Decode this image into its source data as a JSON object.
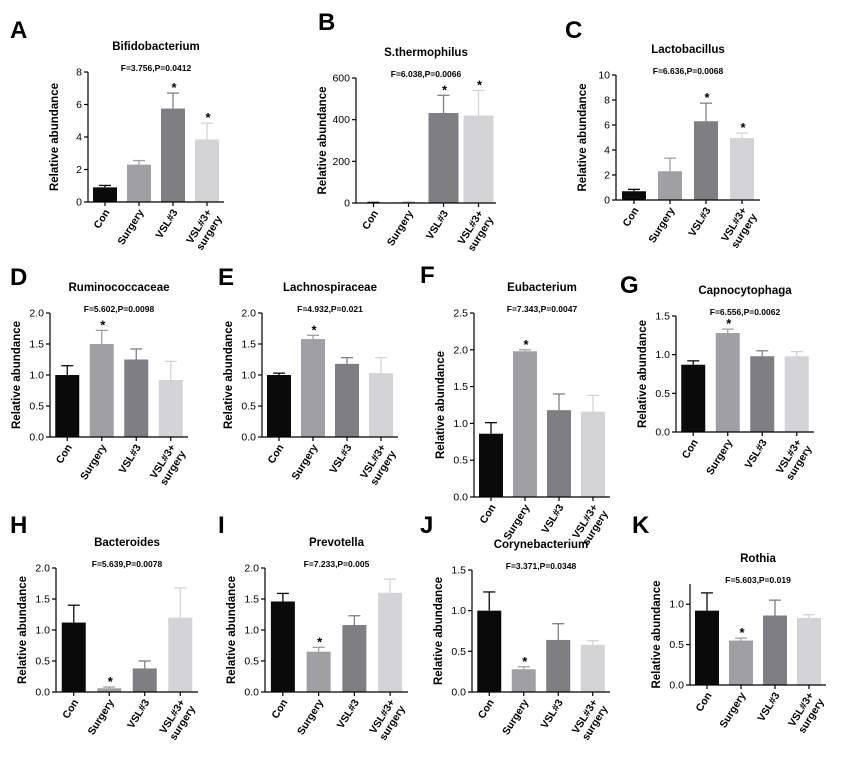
{
  "chart_data": [
    {
      "id": "A",
      "type": "bar",
      "title": "Bifidobacterium",
      "stat": "F=3.756,P=0.0412",
      "ylabel": "Relative abundance",
      "categories": [
        "Con",
        "Surgery",
        "VSL#3",
        "VSL#3+ surgery"
      ],
      "values": [
        0.9,
        2.3,
        5.75,
        3.85
      ],
      "errors": [
        0.12,
        0.25,
        0.95,
        1.0
      ],
      "significance": [
        "",
        "",
        "*",
        "*"
      ],
      "ylim": [
        0,
        8
      ],
      "yticks": [
        0,
        2,
        4,
        6,
        8
      ],
      "yticklabels": [
        "0",
        "2",
        "4",
        "6",
        "8"
      ]
    },
    {
      "id": "B",
      "type": "bar",
      "title": "S.thermophilus",
      "stat": "F=6.038,P=0.0066",
      "ylabel": "Relative abundance",
      "categories": [
        "Con",
        "Surgery",
        "VSL#3",
        "VSL#3+ surgery"
      ],
      "values": [
        2,
        3,
        432,
        420
      ],
      "errors": [
        1,
        1,
        85,
        120
      ],
      "significance": [
        "",
        "",
        "*",
        "*"
      ],
      "ylim": [
        0,
        600
      ],
      "yticks": [
        0,
        200,
        400,
        600
      ],
      "yticklabels": [
        "0",
        "200",
        "400",
        "600"
      ]
    },
    {
      "id": "C",
      "type": "bar",
      "title": "Lactobacillus",
      "stat": "F=6.636,P=0.0068",
      "ylabel": "Relative abundance",
      "categories": [
        "Con",
        "Surgery",
        "VSL#3",
        "VSL#3+ surgery"
      ],
      "values": [
        0.7,
        2.3,
        6.3,
        4.95
      ],
      "errors": [
        0.15,
        1.05,
        1.45,
        0.4
      ],
      "significance": [
        "",
        "",
        "*",
        "*"
      ],
      "ylim": [
        0,
        10
      ],
      "yticks": [
        0,
        2,
        4,
        6,
        8,
        10
      ],
      "yticklabels": [
        "0",
        "2",
        "4",
        "6",
        "8",
        "10"
      ]
    },
    {
      "id": "D",
      "type": "bar",
      "title": "Ruminococcaceae",
      "stat": "F=5.602,P=0.0098",
      "ylabel": "Relative abundance",
      "categories": [
        "Con",
        "Surgery",
        "VSL#3",
        "VSL#3+ surgery"
      ],
      "values": [
        1.0,
        1.5,
        1.25,
        0.92
      ],
      "errors": [
        0.15,
        0.22,
        0.17,
        0.3
      ],
      "significance": [
        "",
        "*",
        "",
        ""
      ],
      "ylim": [
        0,
        2.0
      ],
      "yticks": [
        0,
        0.5,
        1.0,
        1.5,
        2.0
      ],
      "yticklabels": [
        "0.0",
        "0.5",
        "1.0",
        "1.5",
        "2.0"
      ]
    },
    {
      "id": "E",
      "type": "bar",
      "title": "Lachnospiraceae",
      "stat": "F=4.932,P=0.021",
      "ylabel": "Relative abundance",
      "categories": [
        "Con",
        "Surgery",
        "VSL#3",
        "VSL#3+ surgery"
      ],
      "values": [
        1.0,
        1.58,
        1.18,
        1.03
      ],
      "errors": [
        0.03,
        0.06,
        0.1,
        0.25
      ],
      "significance": [
        "",
        "*",
        "",
        ""
      ],
      "ylim": [
        0,
        2.0
      ],
      "yticks": [
        0,
        0.5,
        1.0,
        1.5,
        2.0
      ],
      "yticklabels": [
        "0.0",
        "0.5",
        "1.0",
        "1.5",
        "2.0"
      ]
    },
    {
      "id": "F",
      "type": "bar",
      "title": "Eubacterium",
      "stat": "F=7.343,P=0.0047",
      "ylabel": "Relative abundance",
      "categories": [
        "Con",
        "Surgery",
        "VSL#3",
        "VSL#3+ surgery"
      ],
      "values": [
        0.86,
        1.98,
        1.18,
        1.16
      ],
      "errors": [
        0.15,
        0.02,
        0.22,
        0.22
      ],
      "significance": [
        "",
        "*",
        "",
        ""
      ],
      "ylim": [
        0,
        2.5
      ],
      "yticks": [
        0,
        0.5,
        1.0,
        1.5,
        2.0,
        2.5
      ],
      "yticklabels": [
        "0.0",
        "0.5",
        "1.0",
        "1.5",
        "2.0",
        "2.5"
      ]
    },
    {
      "id": "G",
      "type": "bar",
      "title": "Capnocytophaga",
      "stat": "F=6.556,P=0.0062",
      "ylabel": "Relative abundance",
      "categories": [
        "Con",
        "Surgery",
        "VSL#3",
        "VSL#3+ surgery"
      ],
      "values": [
        0.87,
        1.28,
        0.98,
        0.98
      ],
      "errors": [
        0.05,
        0.05,
        0.07,
        0.06
      ],
      "significance": [
        "",
        "*",
        "",
        ""
      ],
      "ylim": [
        0,
        1.5
      ],
      "yticks": [
        0,
        0.5,
        1.0,
        1.5
      ],
      "yticklabels": [
        "0.0",
        "0.5",
        "1.0",
        "1.5"
      ]
    },
    {
      "id": "H",
      "type": "bar",
      "title": "Bacteroides",
      "stat": "F=5.639,P=0.0078",
      "ylabel": "Relative abundance",
      "categories": [
        "Con",
        "Surgery",
        "VSL#3",
        "VSL#3+ surgery"
      ],
      "values": [
        1.12,
        0.06,
        0.38,
        1.2
      ],
      "errors": [
        0.28,
        0.02,
        0.12,
        0.48
      ],
      "significance": [
        "",
        "*",
        "",
        ""
      ],
      "ylim": [
        0,
        2.0
      ],
      "yticks": [
        0,
        0.5,
        1.0,
        1.5,
        2.0
      ],
      "yticklabels": [
        "0.0",
        "0.5",
        "1.0",
        "1.5",
        "2.0"
      ]
    },
    {
      "id": "I",
      "type": "bar",
      "title": "Prevotella",
      "stat": "F=7.233,P=0.005",
      "ylabel": "Relative abundance",
      "categories": [
        "Con",
        "Surgery",
        "VSL#3",
        "VSL#3+ surgery"
      ],
      "values": [
        1.46,
        0.65,
        1.08,
        1.6
      ],
      "errors": [
        0.13,
        0.07,
        0.15,
        0.22
      ],
      "significance": [
        "",
        "*",
        "",
        ""
      ],
      "ylim": [
        0,
        2.0
      ],
      "yticks": [
        0,
        0.5,
        1.0,
        1.5,
        2.0
      ],
      "yticklabels": [
        "0.0",
        "0.5",
        "1.0",
        "1.5",
        "2.0"
      ]
    },
    {
      "id": "J",
      "type": "bar",
      "title": "Corynebacterium",
      "stat": "F=3.371,P=0.0348",
      "ylabel": "Relative abundance",
      "categories": [
        "Con",
        "Surgery",
        "VSL#3",
        "VSL#3+ surgery"
      ],
      "values": [
        1.0,
        0.28,
        0.64,
        0.58
      ],
      "errors": [
        0.23,
        0.03,
        0.2,
        0.05
      ],
      "significance": [
        "",
        "*",
        "",
        ""
      ],
      "ylim": [
        0,
        1.5
      ],
      "yticks": [
        0,
        0.5,
        1.0,
        1.5
      ],
      "yticklabels": [
        "0.0",
        "0.5",
        "1.0",
        "1.5"
      ]
    },
    {
      "id": "K",
      "type": "bar",
      "title": "Rothia",
      "stat": "F=5.603,P=0.019",
      "ylabel": "Relative abundance",
      "categories": [
        "Con",
        "Surgery",
        "VSL#3",
        "VSL#3+ surgery"
      ],
      "values": [
        0.92,
        0.55,
        0.86,
        0.83
      ],
      "errors": [
        0.22,
        0.03,
        0.19,
        0.04
      ],
      "significance": [
        "",
        "*",
        "",
        ""
      ],
      "ylim": [
        0,
        1.25
      ],
      "yticks": [
        0,
        0.5,
        1.0
      ],
      "yticklabels": [
        "0.0",
        "0.5",
        "1.0"
      ]
    }
  ],
  "bar_colors": [
    "#0a0a0a",
    "#a0a0a4",
    "#7f7f83",
    "#d4d4d6"
  ]
}
